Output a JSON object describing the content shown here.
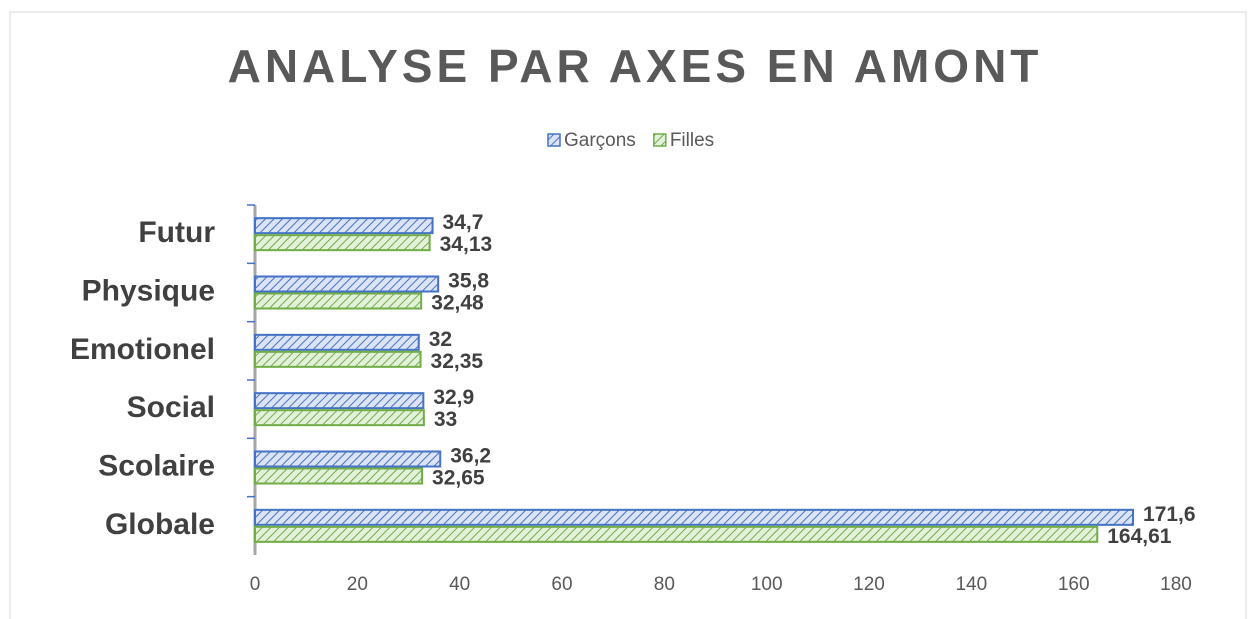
{
  "chart_data": {
    "type": "bar",
    "orientation": "horizontal",
    "title": "ANALYSE PAR AXES EN AMONT",
    "categories": [
      "Futur",
      "Physique",
      "Emotionel",
      "Social",
      "Scolaire",
      "Globale"
    ],
    "series": [
      {
        "name": "Garçons",
        "color": "#4472c4",
        "values": [
          34.7,
          35.8,
          32,
          32.9,
          36.2,
          171.6
        ],
        "value_labels": [
          "34,7",
          "35,8",
          "32",
          "32,9",
          "36,2",
          "171,6"
        ]
      },
      {
        "name": "Filles",
        "color": "#70ad47",
        "values": [
          34.13,
          32.48,
          32.35,
          33,
          32.65,
          164.61
        ],
        "value_labels": [
          "34,13",
          "32,48",
          "32,35",
          "33",
          "32,65",
          "164,61"
        ]
      }
    ],
    "xlim": [
      0,
      180
    ],
    "xticks": [
      0,
      20,
      40,
      60,
      80,
      100,
      120,
      140,
      160,
      180
    ],
    "legend": "top"
  }
}
